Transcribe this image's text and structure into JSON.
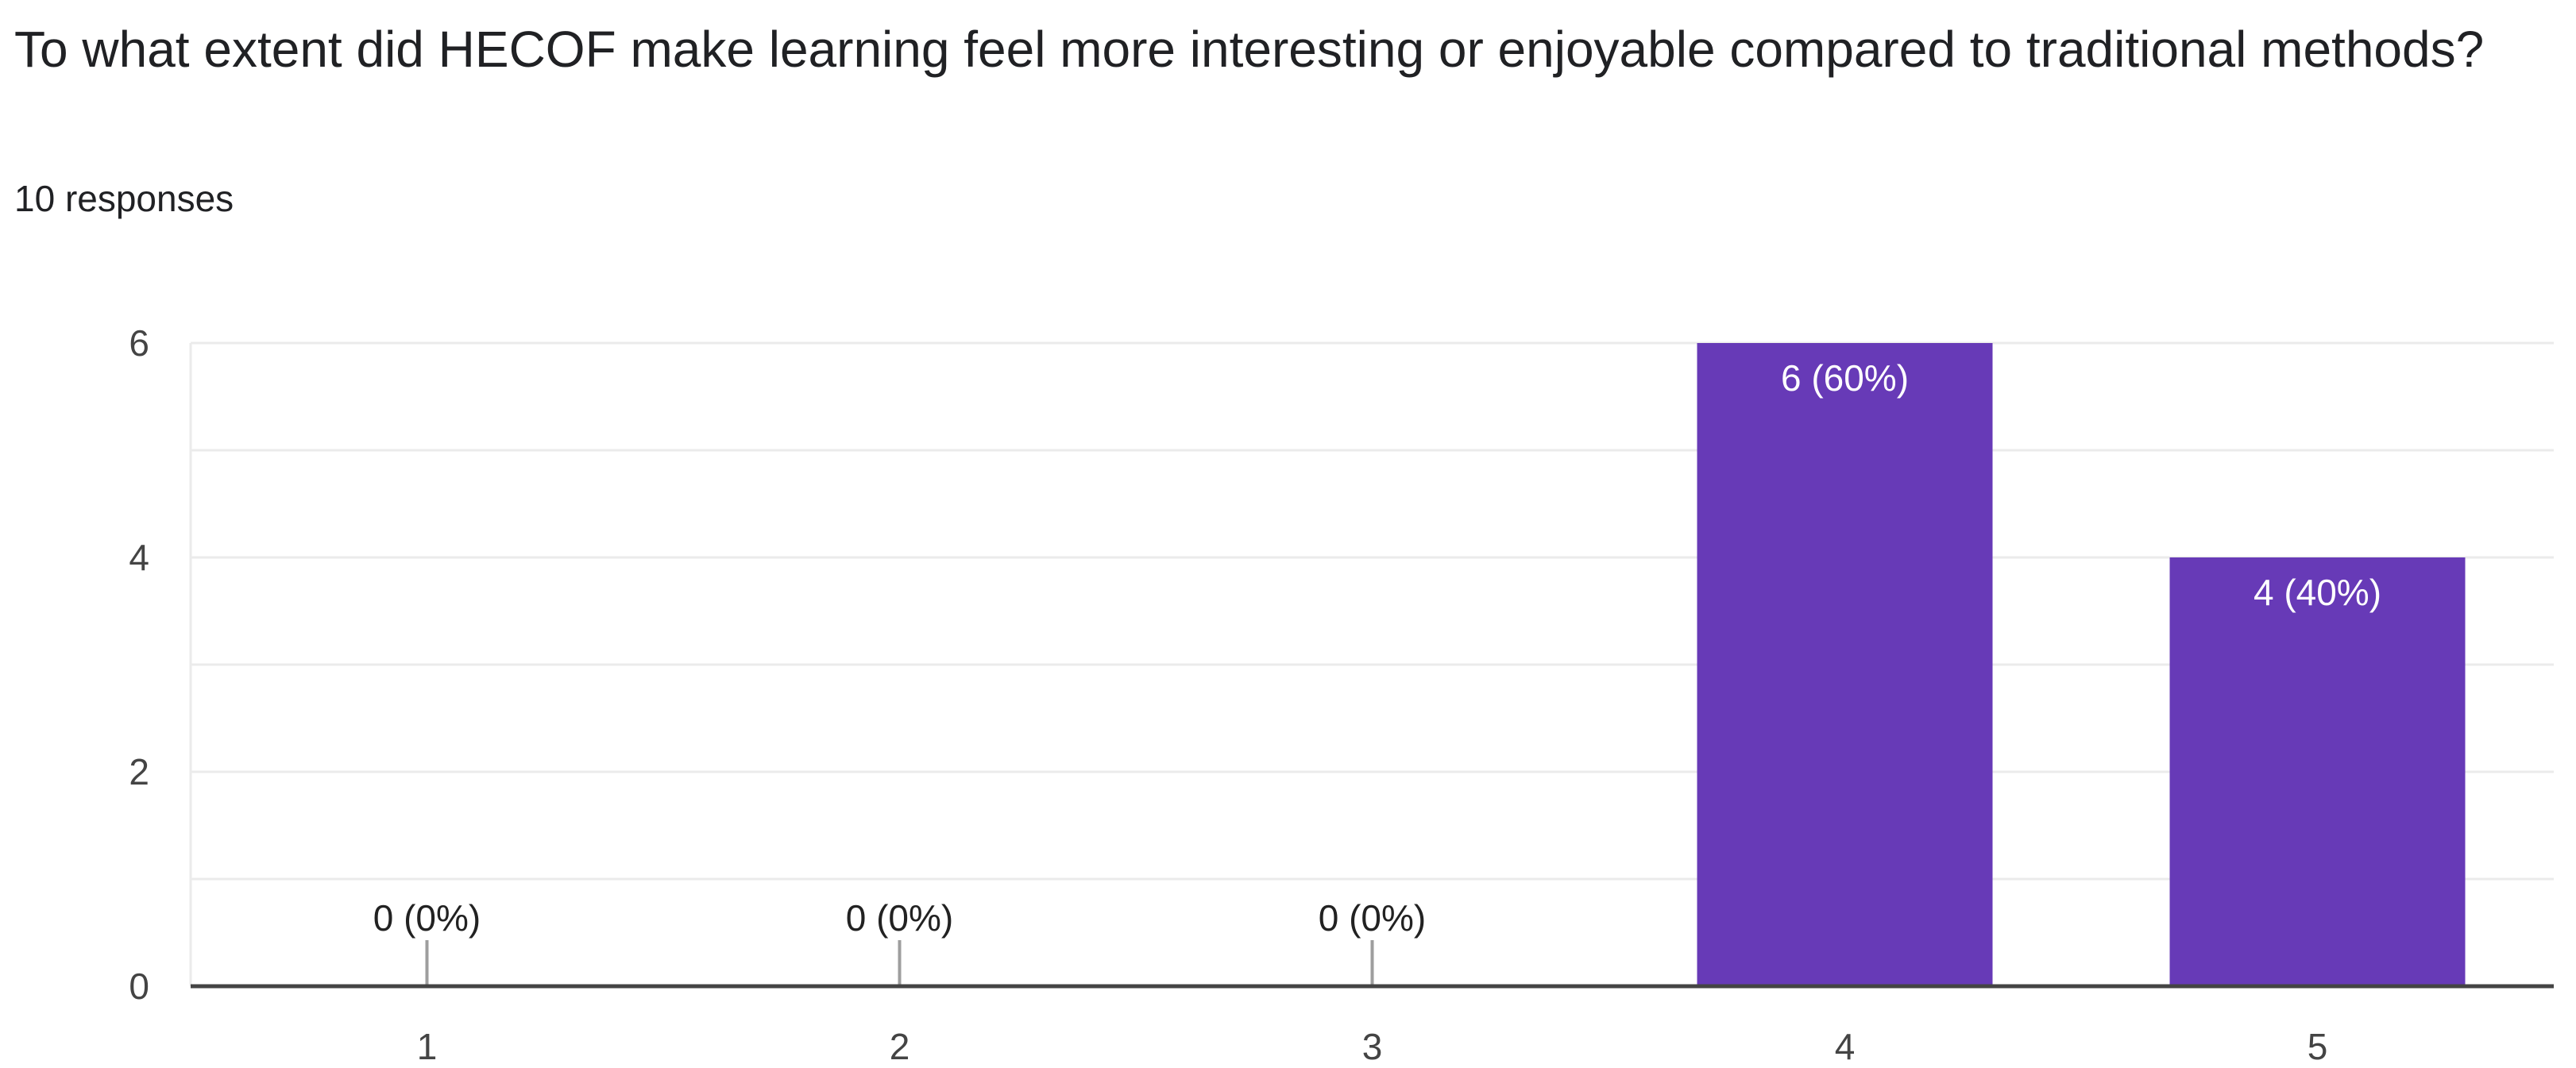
{
  "question": {
    "title": "To what extent did HECOF make learning feel more interesting or enjoyable compared to traditional methods?",
    "responses": "10 responses"
  },
  "colors": {
    "bar": "#673ab7",
    "grid": "#ebebeb",
    "axis": "#444444"
  },
  "chart_data": {
    "type": "bar",
    "categories": [
      "1",
      "2",
      "3",
      "4",
      "5"
    ],
    "values": [
      0,
      0,
      0,
      6,
      4
    ],
    "data_labels": [
      "0 (0%)",
      "0 (0%)",
      "0 (0%)",
      "6 (60%)",
      "4 (40%)"
    ],
    "ylim": [
      0,
      6
    ],
    "yticks": [
      0,
      2,
      4,
      6
    ],
    "grid": true,
    "legend": "none"
  }
}
